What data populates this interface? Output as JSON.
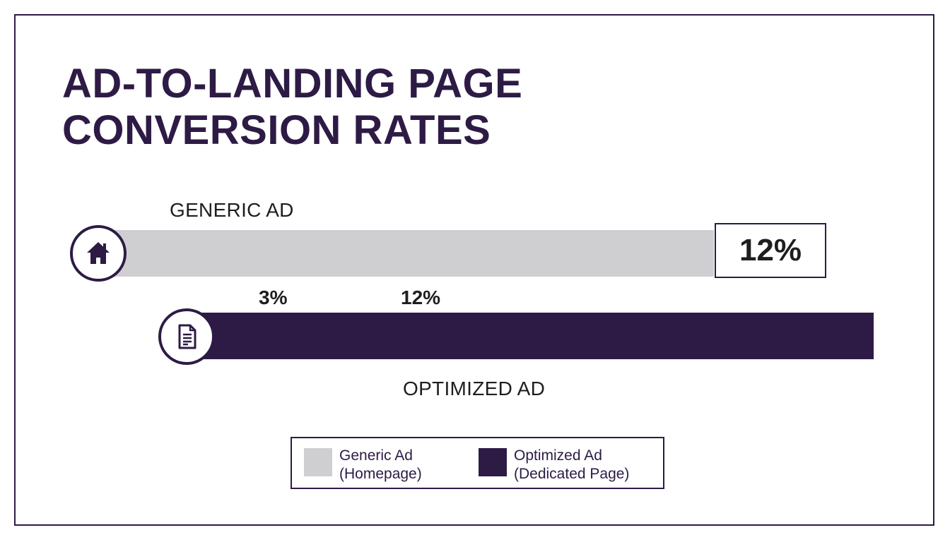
{
  "title": {
    "line1": "AD-TO-LANDING PAGE",
    "line2": "CONVERSION RATES"
  },
  "colors": {
    "generic": "#cfcfd1",
    "optimized": "#2d1b45",
    "accent": "#2d1b45"
  },
  "icons": {
    "generic": "home-icon",
    "optimized": "document-icon"
  },
  "chart_data": {
    "type": "bar",
    "orientation": "horizontal",
    "title": "AD-TO-LANDING PAGE CONVERSION RATES",
    "series": [
      {
        "name": "GENERIC AD",
        "value": 12,
        "value_label": "12%"
      },
      {
        "name": "OPTIMIZED AD",
        "value": 12
      }
    ],
    "tick_labels": [
      "3%",
      "12%"
    ],
    "legend": [
      {
        "line1": "Generic Ad",
        "line2": "(Homepage)"
      },
      {
        "line1": "Optimized Ad",
        "line2": "(Dedicated Page)"
      }
    ],
    "legend_position": "bottom-center",
    "grid": false
  }
}
